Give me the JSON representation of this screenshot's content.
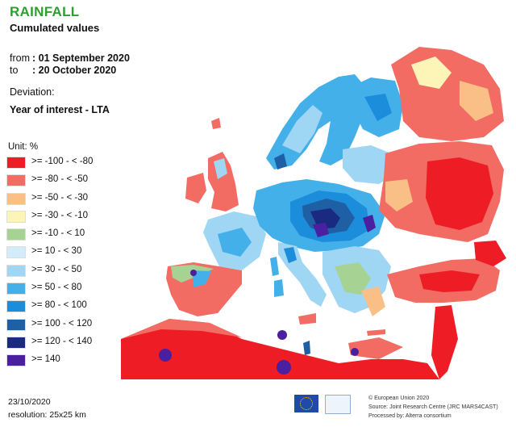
{
  "header": {
    "title": "RAINFALL",
    "subtitle": "Cumulated values",
    "from_label": "from",
    "from_value": ": 01 September 2020",
    "to_label": "to",
    "to_value": ": 20 October 2020",
    "deviation_label": "Deviation:",
    "deviation_value": "Year of interest - LTA"
  },
  "legend": {
    "unit": "Unit:  %",
    "items": [
      {
        "label": ">= -100 - < -80",
        "color": "#ee1c25"
      },
      {
        "label": ">= -80 - < -50",
        "color": "#f26c64"
      },
      {
        "label": ">= -50 - < -30",
        "color": "#f9bf86"
      },
      {
        "label": ">= -30 - < -10",
        "color": "#fdf4b7"
      },
      {
        "label": ">= -10 - < 10",
        "color": "#a6d394"
      },
      {
        "label": ">= 10 - < 30",
        "color": "#d2ecf8"
      },
      {
        "label": ">= 30 - < 50",
        "color": "#9fd6f3"
      },
      {
        "label": ">= 50 - < 80",
        "color": "#44b0ea"
      },
      {
        "label": ">= 80 - < 100",
        "color": "#1b8ddb"
      },
      {
        "label": ">= 100 - < 120",
        "color": "#1f5fa3"
      },
      {
        "label": ">= 120 - < 140",
        "color": "#1a2a80"
      },
      {
        "label": ">= 140",
        "color": "#4a1fa0"
      }
    ]
  },
  "footer": {
    "date": "23/10/2020",
    "resolution": "resolution:  25x25 km",
    "copyright": "© European Union 2020",
    "source": "Source: Joint Research Centre (JRC MARS4CAST)",
    "processed": "Processed by: Alterra consortium"
  },
  "map_colors": {
    "sea": "#ffffff",
    "border": "#6b6b6b"
  }
}
